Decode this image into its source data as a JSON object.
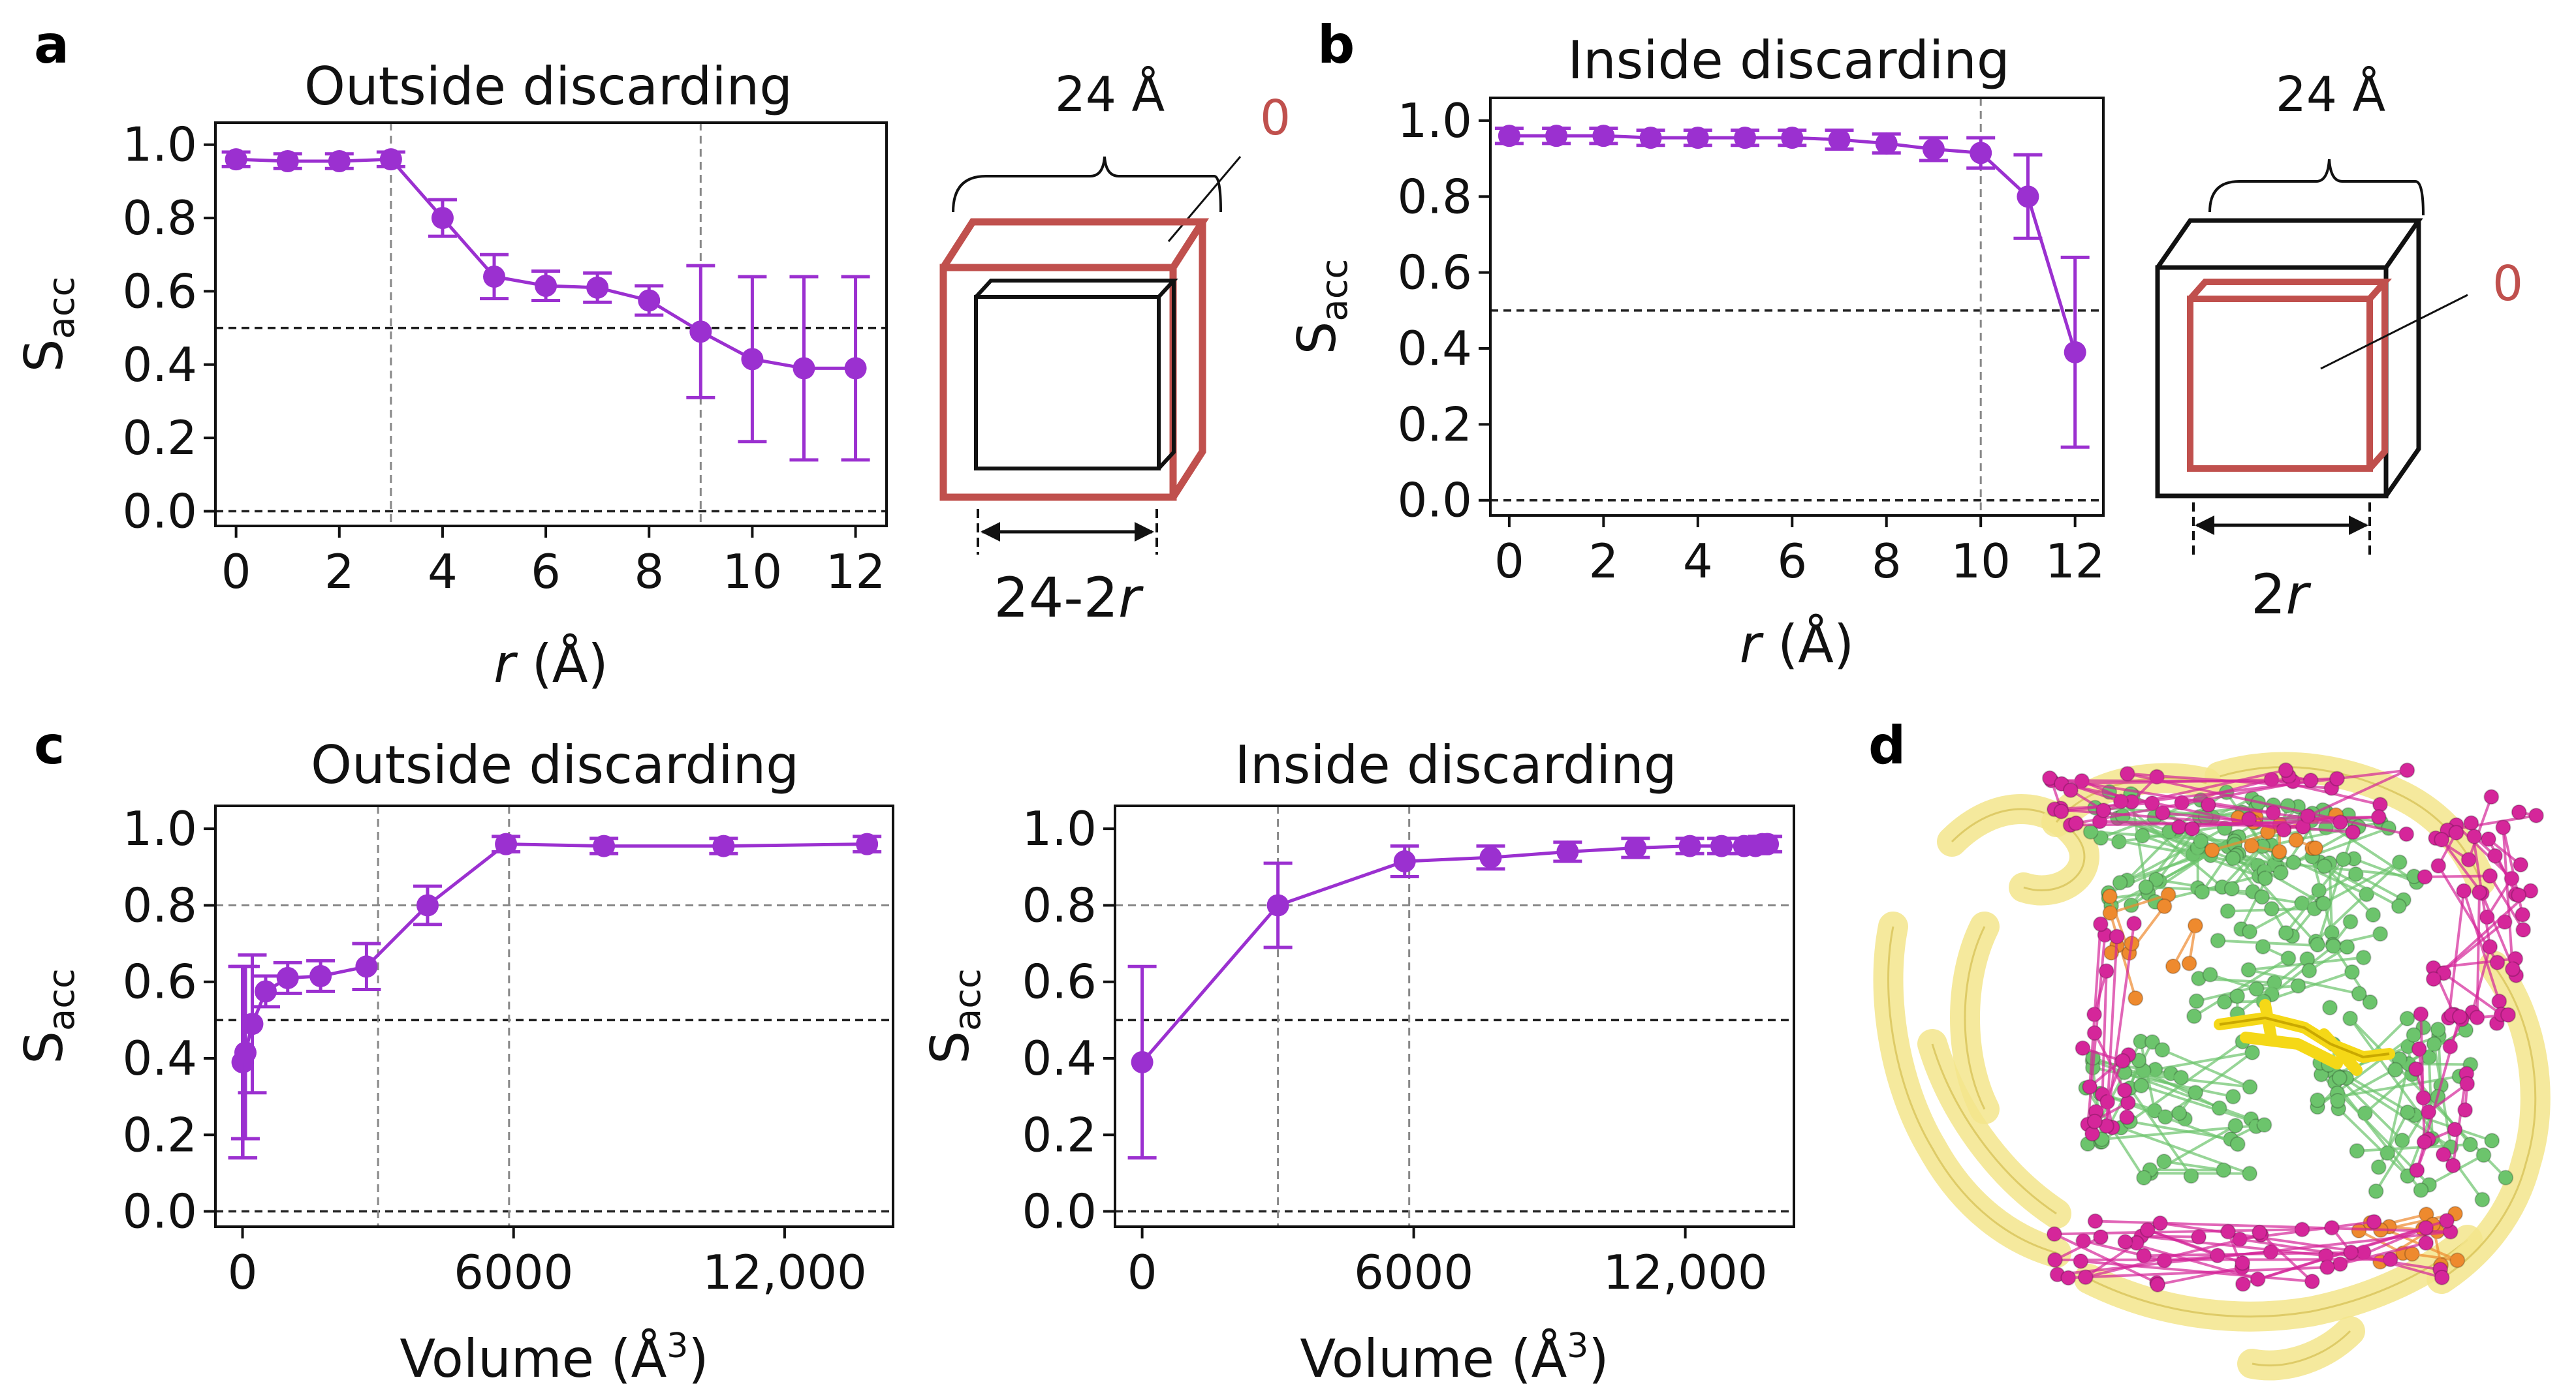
{
  "colors": {
    "series": "#9b30d0",
    "red_cube": "#c0504d",
    "black": "#111111",
    "ref_dash": "#222222",
    "grid_dash": "#888888",
    "ribbon": "#f3e58c",
    "ligand": "#f5d817",
    "magenta_atoms": "#d5269a",
    "green_atoms": "#6cc46c",
    "orange_atoms": "#ee8a2e"
  },
  "panels": {
    "a": {
      "letter": "a"
    },
    "b": {
      "letter": "b"
    },
    "c": {
      "letter": "c"
    },
    "d": {
      "letter": "d"
    }
  },
  "schematics": {
    "a": {
      "top_label": "24 Å",
      "zero_label": "0",
      "bottom_label": "24-2",
      "bottom_var": "r"
    },
    "b": {
      "top_label": "24 Å",
      "zero_label": "0",
      "bottom_label": "2",
      "bottom_var": "r"
    }
  },
  "chart_data": [
    {
      "id": "a",
      "type": "line",
      "title": "Outside discarding",
      "xlabel_var": "r",
      "xlabel_unit": " (Å)",
      "ylabel_main": "S",
      "ylabel_sub": "acc",
      "xlim": [
        -0.4,
        12.6
      ],
      "ylim": [
        -0.04,
        1.06
      ],
      "xticks": [
        0,
        2,
        4,
        6,
        8,
        10,
        12
      ],
      "xtick_labels": [
        "0",
        "2",
        "4",
        "6",
        "8",
        "10",
        "12"
      ],
      "yticks": [
        0.0,
        0.2,
        0.4,
        0.6,
        0.8,
        1.0
      ],
      "ytick_labels": [
        "0.0",
        "0.2",
        "0.4",
        "0.6",
        "0.8",
        "1.0"
      ],
      "hlines": [
        0.5,
        0.0
      ],
      "vlines": [
        3,
        9
      ],
      "x": [
        0,
        1,
        2,
        3,
        4,
        5,
        6,
        7,
        8,
        9,
        10,
        11,
        12
      ],
      "y": [
        0.96,
        0.955,
        0.955,
        0.96,
        0.8,
        0.64,
        0.615,
        0.61,
        0.575,
        0.49,
        0.415,
        0.39,
        0.39
      ],
      "err": [
        0.02,
        0.02,
        0.02,
        0.02,
        0.05,
        0.06,
        0.04,
        0.04,
        0.04,
        0.18,
        0.225,
        0.25,
        0.25
      ]
    },
    {
      "id": "b",
      "type": "line",
      "title": "Inside discarding",
      "xlabel_var": "r",
      "xlabel_unit": " (Å)",
      "ylabel_main": "S",
      "ylabel_sub": "acc",
      "xlim": [
        -0.4,
        12.6
      ],
      "ylim": [
        -0.04,
        1.06
      ],
      "xticks": [
        0,
        2,
        4,
        6,
        8,
        10,
        12
      ],
      "xtick_labels": [
        "0",
        "2",
        "4",
        "6",
        "8",
        "10",
        "12"
      ],
      "yticks": [
        0.0,
        0.2,
        0.4,
        0.6,
        0.8,
        1.0
      ],
      "ytick_labels": [
        "0.0",
        "0.2",
        "0.4",
        "0.6",
        "0.8",
        "1.0"
      ],
      "hlines": [
        0.5,
        0.0
      ],
      "vlines": [
        10
      ],
      "x": [
        0,
        1,
        2,
        3,
        4,
        5,
        6,
        7,
        8,
        9,
        10,
        11,
        12
      ],
      "y": [
        0.96,
        0.96,
        0.96,
        0.955,
        0.955,
        0.955,
        0.955,
        0.95,
        0.94,
        0.925,
        0.915,
        0.8,
        0.39
      ],
      "err": [
        0.02,
        0.02,
        0.02,
        0.02,
        0.02,
        0.02,
        0.02,
        0.025,
        0.025,
        0.03,
        0.04,
        0.11,
        0.25
      ]
    },
    {
      "id": "c1",
      "type": "line",
      "title": "Outside discarding",
      "xlabel_text": "Volume (Å",
      "xlabel_sup": "3",
      "xlabel_close": ")",
      "ylabel_main": "S",
      "ylabel_sub": "acc",
      "xlim": [
        -600,
        14400
      ],
      "ylim": [
        -0.04,
        1.06
      ],
      "xticks": [
        0,
        6000,
        12000
      ],
      "xtick_labels": [
        "0",
        "6000",
        "12,000"
      ],
      "yticks": [
        0.0,
        0.2,
        0.4,
        0.6,
        0.8,
        1.0
      ],
      "ytick_labels": [
        "0.0",
        "0.2",
        "0.4",
        "0.6",
        "0.8",
        "1.0"
      ],
      "hlines": [
        0.8,
        0.5,
        0.0
      ],
      "hline_styles": [
        "grid",
        "ref",
        "ref"
      ],
      "vlines": [
        3000,
        5900
      ],
      "x": [
        0,
        8,
        64,
        216,
        512,
        1000,
        1728,
        2744,
        4096,
        5832,
        8000,
        10648,
        13824
      ],
      "y": [
        0.39,
        0.39,
        0.415,
        0.49,
        0.575,
        0.61,
        0.615,
        0.64,
        0.8,
        0.96,
        0.955,
        0.955,
        0.96
      ],
      "err": [
        0.25,
        0.25,
        0.225,
        0.18,
        0.04,
        0.04,
        0.04,
        0.06,
        0.05,
        0.02,
        0.02,
        0.02,
        0.02
      ]
    },
    {
      "id": "c2",
      "type": "line",
      "title": "Inside discarding",
      "xlabel_text": "Volume (Å",
      "xlabel_sup": "3",
      "xlabel_close": ")",
      "ylabel_main": "S",
      "ylabel_sub": "acc",
      "xlim": [
        -600,
        14400
      ],
      "ylim": [
        -0.04,
        1.06
      ],
      "xticks": [
        0,
        6000,
        12000
      ],
      "xtick_labels": [
        "0",
        "6000",
        "12,000"
      ],
      "yticks": [
        0.0,
        0.2,
        0.4,
        0.6,
        0.8,
        1.0
      ],
      "ytick_labels": [
        "0.0",
        "0.2",
        "0.4",
        "0.6",
        "0.8",
        "1.0"
      ],
      "hlines": [
        0.8,
        0.5,
        0.0
      ],
      "hline_styles": [
        "grid",
        "ref",
        "ref"
      ],
      "vlines": [
        3000,
        5900
      ],
      "x": [
        0,
        3000,
        5800,
        7700,
        9400,
        10900,
        12100,
        12800,
        13300,
        13550,
        13700,
        13800,
        13824
      ],
      "y": [
        0.39,
        0.8,
        0.915,
        0.925,
        0.94,
        0.95,
        0.955,
        0.955,
        0.955,
        0.955,
        0.96,
        0.96,
        0.96
      ],
      "err": [
        0.25,
        0.11,
        0.04,
        0.03,
        0.025,
        0.025,
        0.02,
        0.02,
        0.02,
        0.02,
        0.02,
        0.02,
        0.02
      ]
    }
  ]
}
